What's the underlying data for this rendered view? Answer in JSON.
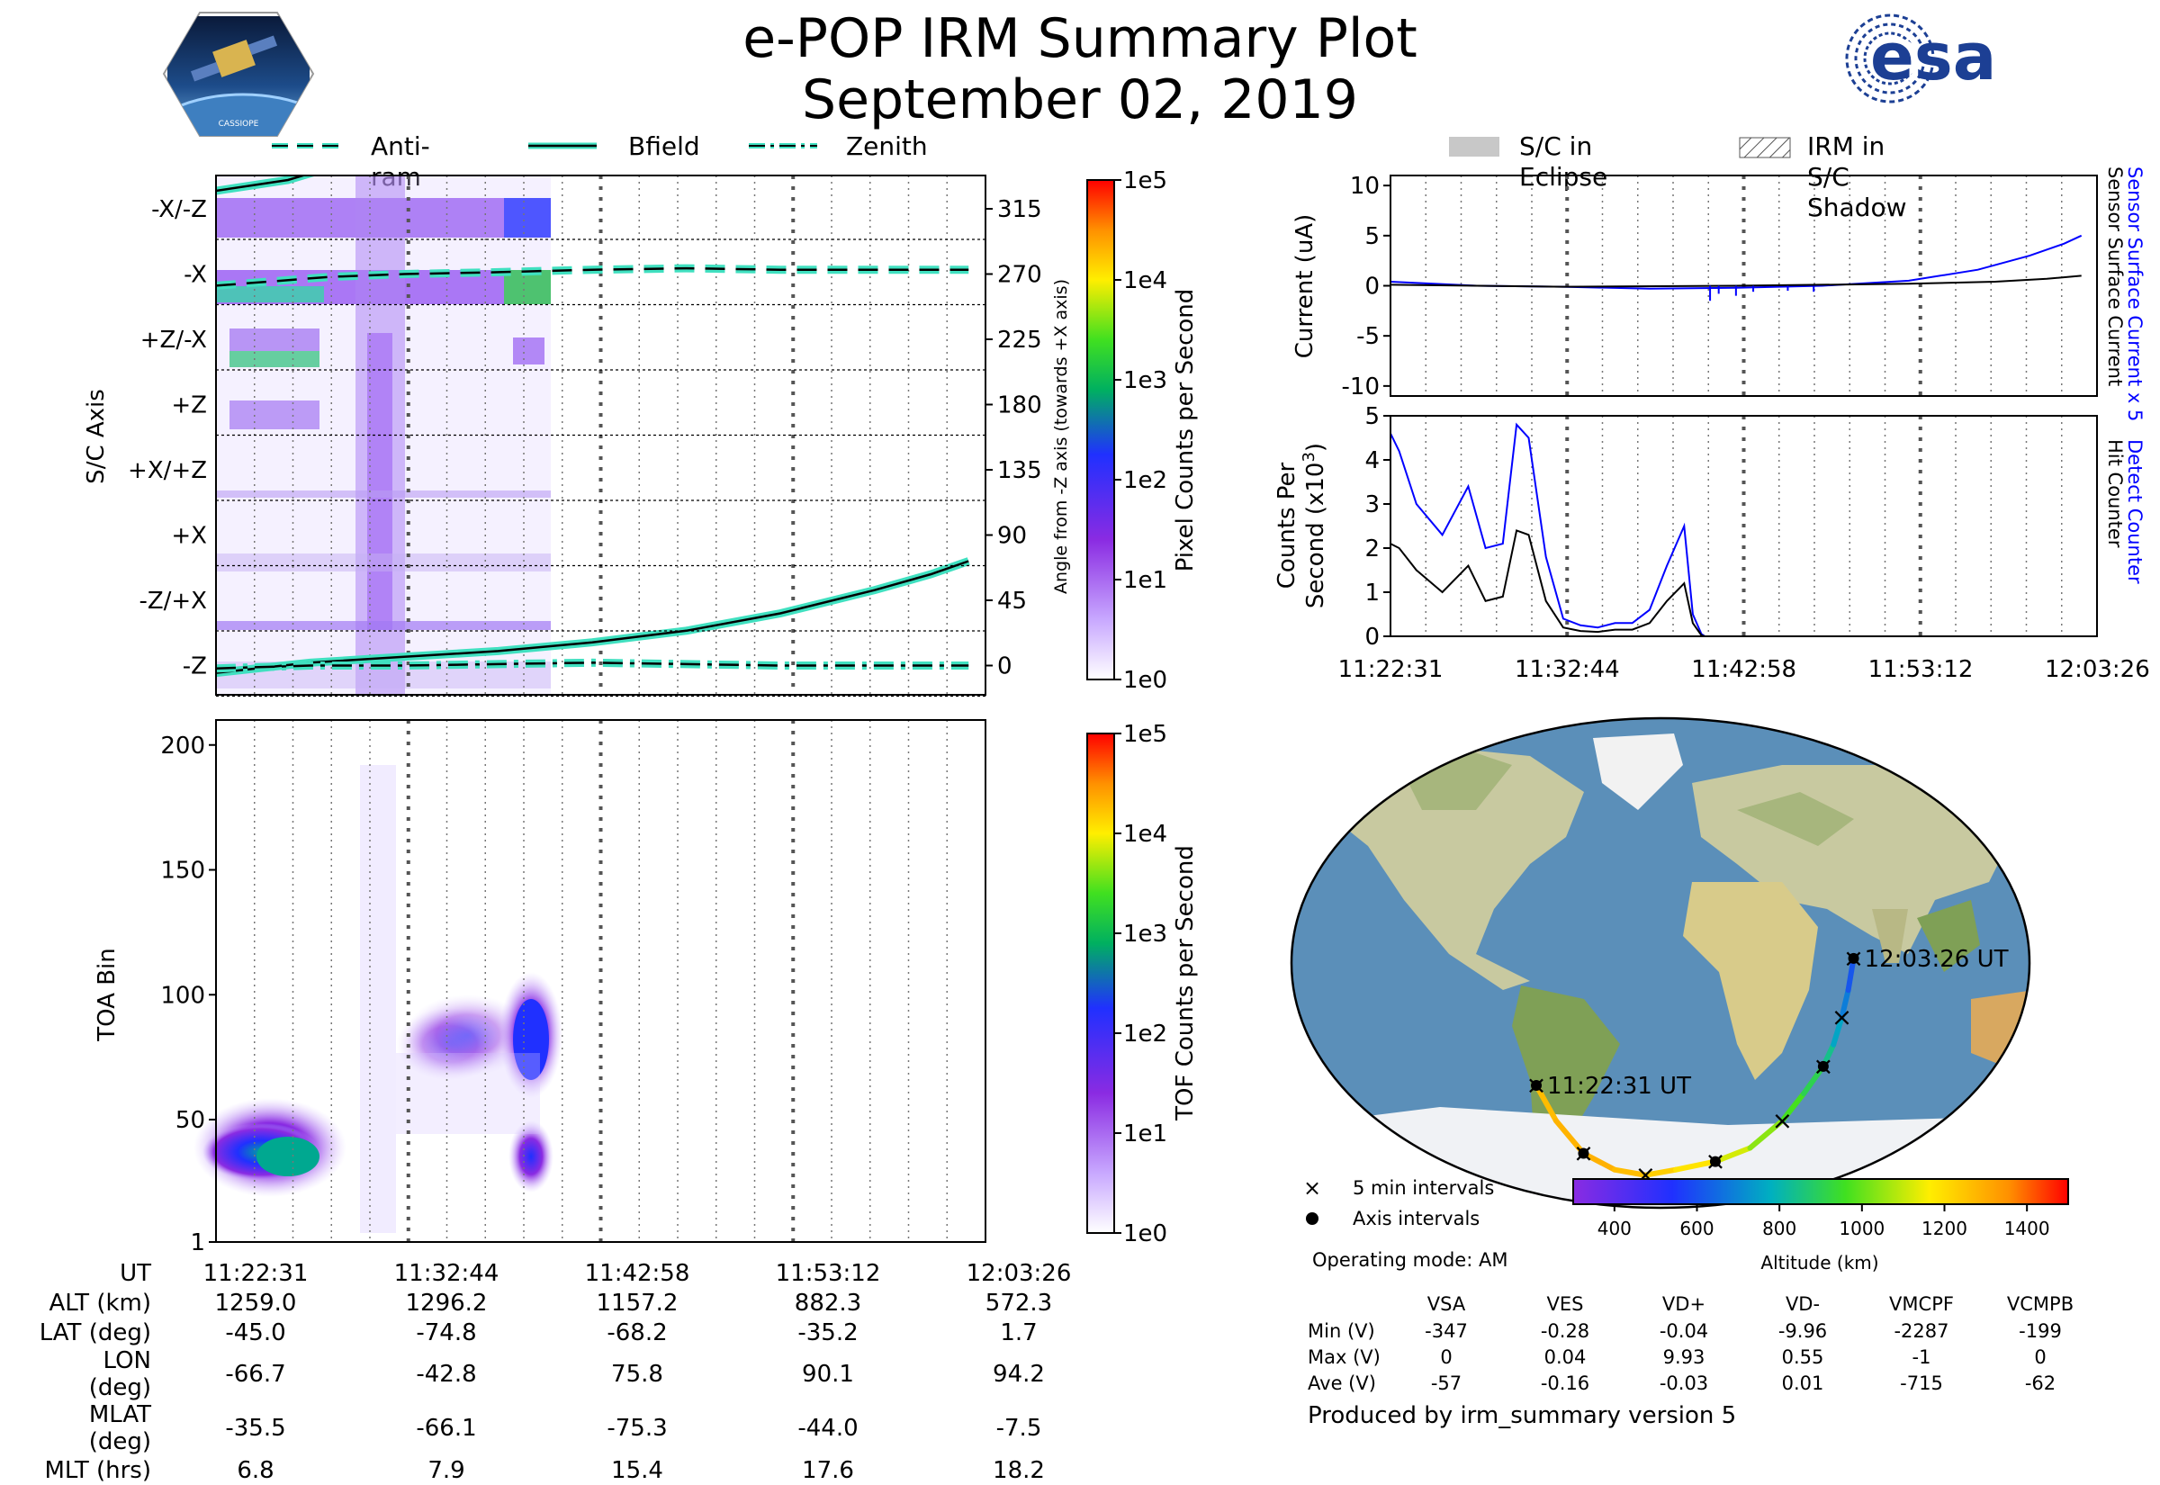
{
  "header": {
    "title": "e-POP IRM Summary Plot",
    "date": "September 02, 2019",
    "left_logo": {
      "icon": "cassiope-mission-patch",
      "text": "CASSIOPE"
    },
    "right_logo": {
      "icon": "esa-logo",
      "text": "esa"
    }
  },
  "colors": {
    "trace": "#40e0c0",
    "blue": "#0000ff",
    "black": "#000000",
    "eclipse": "#c8c8c8",
    "ocean": "#5b8fb9",
    "land": "#c8c9a0"
  },
  "legend_top_left": [
    {
      "label": "Anti-ram",
      "style": "dashed"
    },
    {
      "label": "Bfield",
      "style": "solid"
    },
    {
      "label": "Zenith",
      "style": "dashdot"
    }
  ],
  "legend_top_right": [
    {
      "label": "S/C in Eclipse",
      "style": "filled"
    },
    {
      "label": "IRM in S/C Shadow",
      "style": "hatched"
    }
  ],
  "time_ticks": [
    "11:22:31",
    "11:32:44",
    "11:42:58",
    "11:53:12",
    "12:03:26"
  ],
  "chart_data": [
    {
      "id": "axis_panel",
      "type": "heatmap",
      "ylabel": "S/C Axis",
      "y_categories": [
        "-X/-Z",
        "-X",
        "+Z/-X",
        "+Z",
        "+X/+Z",
        "+X",
        "-Z/+X",
        "-Z"
      ],
      "y2label": "Angle from -Z axis (towards +X axis)",
      "y2_ticks": [
        315,
        270,
        225,
        180,
        135,
        90,
        45,
        0
      ],
      "colorbar": {
        "label": "Pixel Counts per Second",
        "ticks": [
          "1e5",
          "1e4",
          "1e3",
          "1e2",
          "1e1",
          "1e0"
        ]
      },
      "series": [
        {
          "name": "Anti-ram",
          "style": "dashed",
          "x_min": [
            0,
            3,
            6,
            10,
            14,
            20,
            25,
            30,
            35,
            40
          ],
          "y": [
            262,
            265,
            268,
            270,
            271,
            273,
            274,
            273,
            273,
            273
          ]
        },
        {
          "name": "Bfield",
          "style": "solid",
          "x_min": [
            0,
            5,
            10,
            15,
            20,
            25,
            30,
            35,
            38,
            40
          ],
          "y": [
            -5,
            2,
            6,
            10,
            16,
            24,
            36,
            52,
            63,
            72
          ]
        },
        {
          "name": "Zenith",
          "style": "dashdot",
          "x_min": [
            0,
            5,
            10,
            15,
            20,
            25,
            30,
            35,
            40
          ],
          "y": [
            -2,
            0,
            0,
            1,
            2,
            1,
            0,
            0,
            0
          ]
        }
      ]
    },
    {
      "id": "current_panel",
      "type": "line",
      "ylabel": "Current (uA)",
      "y_ticks": [
        10,
        5,
        0,
        -5,
        -10
      ],
      "ylim": [
        -11,
        11
      ],
      "series": [
        {
          "name": "Sensor Surface Current x 5",
          "color": "#0000ff",
          "x_min": [
            0,
            5,
            10,
            15,
            20,
            25,
            30,
            34,
            37,
            39,
            40
          ],
          "y": [
            0.4,
            0.0,
            -0.1,
            -0.3,
            -0.2,
            0.0,
            0.5,
            1.6,
            3.0,
            4.2,
            5.0
          ]
        },
        {
          "name": "Sensor Surface Current",
          "color": "#000000",
          "x_min": [
            0,
            10,
            20,
            30,
            35,
            38,
            40
          ],
          "y": [
            0.1,
            -0.1,
            0.0,
            0.2,
            0.4,
            0.7,
            1.0
          ]
        }
      ]
    },
    {
      "id": "counts_panel",
      "type": "line",
      "ylabel": "Counts Per Second (x10^3)",
      "y_ticks": [
        5,
        4,
        3,
        2,
        1,
        0
      ],
      "ylim": [
        0,
        5
      ],
      "series": [
        {
          "name": "Detect Counter",
          "color": "#0000ff",
          "x_min": [
            0,
            0.5,
            1.5,
            3,
            4.5,
            5.5,
            6.5,
            7.3,
            8,
            9,
            10,
            11,
            12,
            13,
            14,
            15,
            16,
            17,
            17.5,
            18,
            18.2,
            40
          ],
          "y": [
            4.6,
            4.2,
            3.0,
            2.3,
            3.4,
            2.0,
            2.1,
            4.8,
            4.5,
            1.8,
            0.4,
            0.25,
            0.2,
            0.3,
            0.3,
            0.6,
            1.6,
            2.5,
            0.5,
            0.05,
            0,
            0
          ]
        },
        {
          "name": "Hit Counter",
          "color": "#000000",
          "x_min": [
            0,
            0.5,
            1.5,
            3,
            4.5,
            5.5,
            6.5,
            7.3,
            8,
            9,
            10,
            11,
            12,
            13,
            14,
            15,
            16,
            17,
            17.5,
            18,
            18.2,
            40
          ],
          "y": [
            2.1,
            2.0,
            1.5,
            1.0,
            1.6,
            0.8,
            0.9,
            2.4,
            2.3,
            0.8,
            0.2,
            0.12,
            0.1,
            0.15,
            0.15,
            0.3,
            0.8,
            1.2,
            0.3,
            0.02,
            0,
            0
          ]
        }
      ]
    },
    {
      "id": "toa_panel",
      "type": "heatmap",
      "ylabel": "TOA Bin",
      "y_ticks": [
        200,
        150,
        100,
        50,
        1
      ],
      "colorbar": {
        "label": "TOF Counts per Second",
        "ticks": [
          "1e5",
          "1e4",
          "1e3",
          "1e2",
          "1e1",
          "1e0"
        ]
      }
    },
    {
      "id": "orbit_map",
      "type": "scatter",
      "start_label": "11:22:31 UT",
      "end_label": "12:03:26 UT",
      "colorbar": {
        "label": "Altitude (km)",
        "ticks": [
          400,
          600,
          800,
          1000,
          1200,
          1400
        ]
      },
      "legend": [
        "5 min intervals",
        "Axis intervals"
      ],
      "track": {
        "lon": [
          -66.7,
          -60,
          -48,
          -30,
          -10,
          10,
          35,
          55,
          70,
          78,
          85,
          88,
          90.1,
          92,
          94.2
        ],
        "lat": [
          -45.0,
          -58,
          -70,
          -76,
          -78,
          -76,
          -73,
          -68,
          -58,
          -48,
          -38,
          -30,
          -20,
          -10,
          1.7
        ],
        "altitude_km": [
          1259,
          1275,
          1296,
          1280,
          1250,
          1210,
          1157,
          1080,
          1000,
          930,
          882,
          800,
          720,
          650,
          572
        ]
      }
    }
  ],
  "bottom_table": {
    "rows": [
      {
        "label": "UT",
        "values": [
          "11:22:31",
          "11:32:44",
          "11:42:58",
          "11:53:12",
          "12:03:26"
        ]
      },
      {
        "label": "ALT (km)",
        "values": [
          "1259.0",
          "1296.2",
          "1157.2",
          "882.3",
          "572.3"
        ]
      },
      {
        "label": "LAT (deg)",
        "values": [
          "-45.0",
          "-74.8",
          "-68.2",
          "-35.2",
          "1.7"
        ]
      },
      {
        "label": "LON (deg)",
        "values": [
          "-66.7",
          "-42.8",
          "75.8",
          "90.1",
          "94.2"
        ]
      },
      {
        "label": "MLAT (deg)",
        "values": [
          "-35.5",
          "-66.1",
          "-75.3",
          "-44.0",
          "-7.5"
        ]
      },
      {
        "label": "MLT (hrs)",
        "values": [
          "6.8",
          "7.9",
          "15.4",
          "17.6",
          "18.2"
        ]
      }
    ]
  },
  "legend_map": {
    "x_label": "5 min intervals",
    "dot_label": "Axis intervals"
  },
  "operating_mode": "Operating mode: AM",
  "voltage_table": {
    "columns": [
      "VSA",
      "VES",
      "VD+",
      "VD-",
      "VMCPF",
      "VCMPB"
    ],
    "rows": [
      {
        "label": "Min (V)",
        "values": [
          "-347",
          "-0.28",
          "-0.04",
          "-9.96",
          "-2287",
          "-199"
        ]
      },
      {
        "label": "Max (V)",
        "values": [
          "0",
          "0.04",
          "9.93",
          "0.55",
          "-1",
          "0"
        ]
      },
      {
        "label": "Ave (V)",
        "values": [
          "-57",
          "-0.16",
          "-0.03",
          "0.01",
          "-715",
          "-62"
        ]
      }
    ]
  },
  "footer": "Produced by irm_summary version 5"
}
